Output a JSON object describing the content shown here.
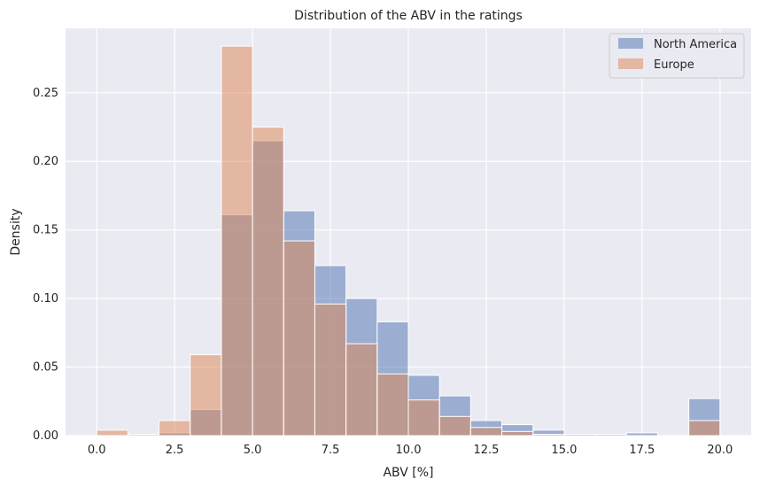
{
  "chart_data": {
    "type": "bar",
    "title": "Distribution of the ABV in the ratings",
    "xlabel": "ABV [%]",
    "ylabel": "Density",
    "xlim": [
      -1.0,
      21.0
    ],
    "ylim": [
      0.0,
      0.297
    ],
    "x_ticks": [
      0.0,
      2.5,
      5.0,
      7.5,
      10.0,
      12.5,
      15.0,
      17.5,
      20.0
    ],
    "x_tick_labels": [
      "0.0",
      "2.5",
      "5.0",
      "7.5",
      "10.0",
      "12.5",
      "15.0",
      "17.5",
      "20.0"
    ],
    "y_ticks": [
      0.0,
      0.05,
      0.1,
      0.15,
      0.2,
      0.25
    ],
    "y_tick_labels": [
      "0.00",
      "0.05",
      "0.10",
      "0.15",
      "0.20",
      "0.25"
    ],
    "grid": true,
    "legend_position": "top-right",
    "bin_edges": [
      0,
      1,
      2,
      3,
      4,
      5,
      6,
      7,
      8,
      9,
      10,
      11,
      12,
      13,
      14,
      15,
      16,
      17,
      18,
      19,
      20
    ],
    "series": [
      {
        "name": "North America",
        "color": "#4c72b0",
        "values": [
          0.0,
          0.0,
          0.002,
          0.019,
          0.161,
          0.215,
          0.164,
          0.124,
          0.1,
          0.083,
          0.044,
          0.029,
          0.011,
          0.008,
          0.004,
          0.001,
          0.001,
          0.002,
          0.0,
          0.027
        ]
      },
      {
        "name": "Europe",
        "color": "#dd8452",
        "values": [
          0.004,
          0.001,
          0.011,
          0.059,
          0.284,
          0.225,
          0.142,
          0.096,
          0.067,
          0.045,
          0.026,
          0.014,
          0.006,
          0.003,
          0.001,
          0.0,
          0.0,
          0.0,
          0.0,
          0.011
        ]
      }
    ]
  }
}
